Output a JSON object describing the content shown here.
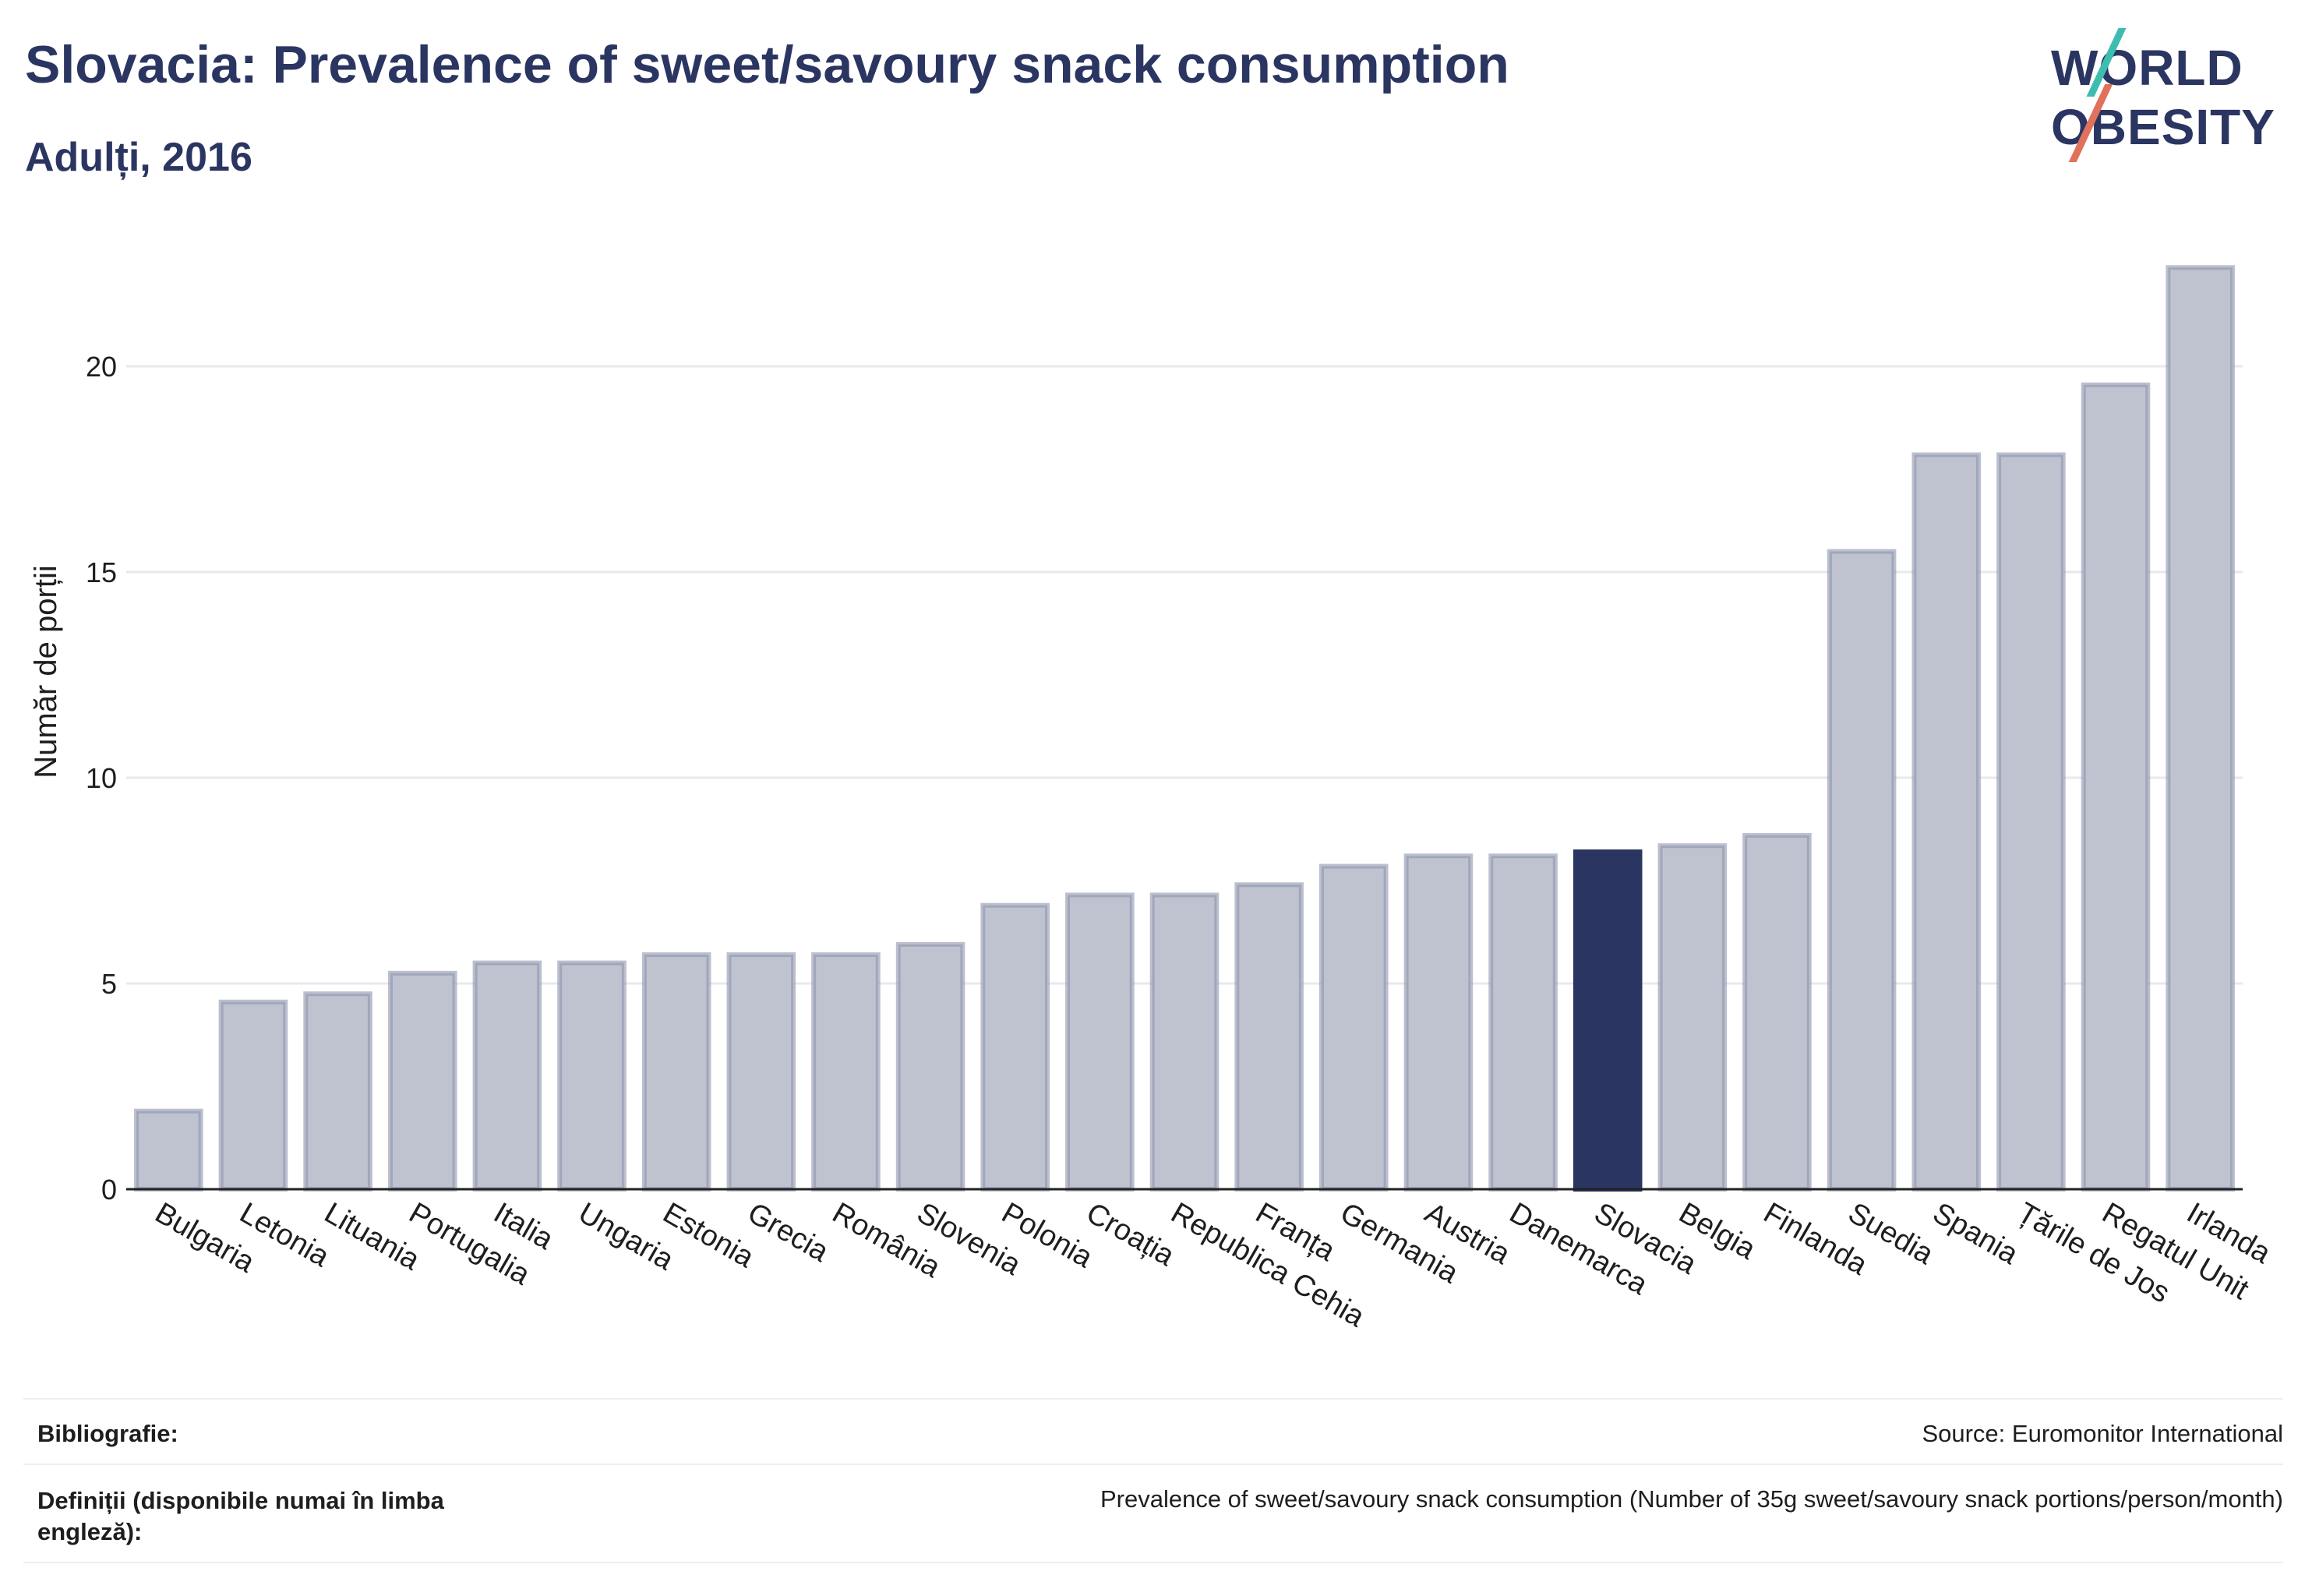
{
  "header": {
    "title": "Slovacia: Prevalence of sweet/savoury snack consumption",
    "subtitle": "Adulți, 2016"
  },
  "logo": {
    "line1": "WORLD",
    "line2": "OBESITY",
    "colors": {
      "text": "#2b3561",
      "teal": "#3dbdb0",
      "coral": "#e0725c"
    }
  },
  "chart_data": {
    "type": "bar",
    "ylabel": "Număr de porții",
    "ylim": [
      0,
      22.5
    ],
    "yticks": [
      0,
      5,
      10,
      15,
      20
    ],
    "grid": true,
    "highlight": "Slovacia",
    "categories": [
      "Bulgaria",
      "Letonia",
      "Lituania",
      "Portugalia",
      "Italia",
      "Ungaria",
      "Estonia",
      "Grecia",
      "România",
      "Slovenia",
      "Polonia",
      "Croația",
      "Republica Cehia",
      "Franța",
      "Germania",
      "Austria",
      "Danemarca",
      "Slovacia",
      "Belgia",
      "Finlanda",
      "Suedia",
      "Spania",
      "Țările de Jos",
      "Regatul Unit",
      "Irlanda"
    ],
    "values": [
      1.9,
      4.55,
      4.75,
      5.25,
      5.5,
      5.5,
      5.7,
      5.7,
      5.7,
      5.95,
      6.9,
      7.15,
      7.15,
      7.4,
      7.85,
      8.1,
      8.1,
      8.2,
      8.35,
      8.6,
      15.5,
      17.85,
      17.85,
      19.55,
      22.4
    ],
    "colors": {
      "bar": "#bfc3d0",
      "bar_edge": "#8e95ad",
      "highlight": "#2b3561",
      "grid": "#e8e9ef",
      "axis": "#222222"
    }
  },
  "footer": {
    "bibliography_label": "Bibliografie:",
    "bibliography_value": "Source: Euromonitor International",
    "definitions_label": "Definiții (disponibile numai în limba engleză):",
    "definitions_value": "Prevalence of sweet/savoury snack consumption (Number of 35g sweet/savoury snack portions/person/month)"
  }
}
